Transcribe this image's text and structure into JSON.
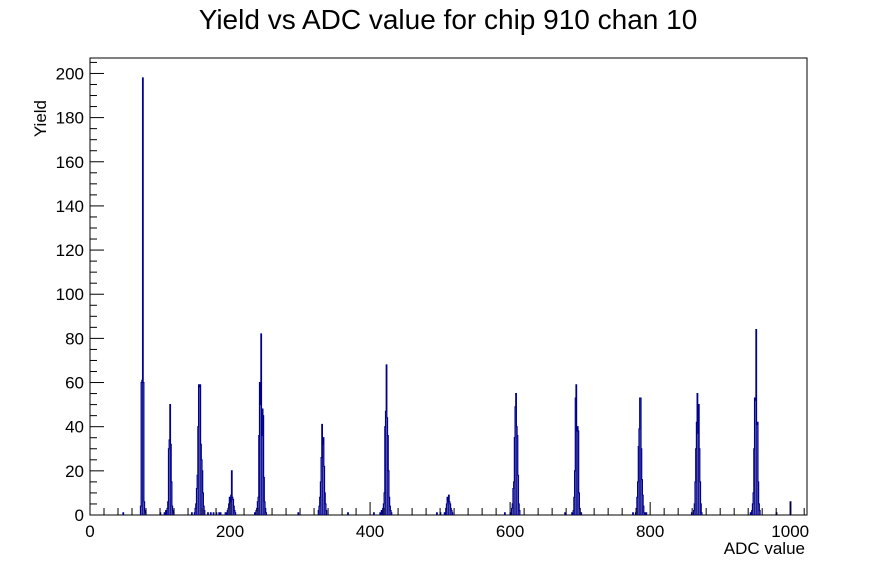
{
  "chart_data": {
    "type": "bar",
    "title": "Yield vs ADC value for chip 910 chan 10",
    "xlabel": "ADC value",
    "ylabel": "Yield",
    "xlim": [
      0,
      1024
    ],
    "ylim": [
      0,
      207
    ],
    "x_ticks": [
      0,
      200,
      400,
      600,
      800,
      1000
    ],
    "y_ticks": [
      0,
      20,
      40,
      60,
      80,
      100,
      120,
      140,
      160,
      180,
      200
    ],
    "grid": false,
    "legend": "none",
    "color": "#00008b",
    "bins": [
      [
        47,
        1
      ],
      [
        72,
        4
      ],
      [
        73,
        60
      ],
      [
        74,
        61
      ],
      [
        75,
        198
      ],
      [
        76,
        60
      ],
      [
        77,
        6
      ],
      [
        78,
        2
      ],
      [
        79,
        1
      ],
      [
        100,
        1
      ],
      [
        106,
        1
      ],
      [
        108,
        2
      ],
      [
        110,
        3
      ],
      [
        111,
        6
      ],
      [
        112,
        30
      ],
      [
        113,
        34
      ],
      [
        114,
        50
      ],
      [
        115,
        32
      ],
      [
        116,
        15
      ],
      [
        117,
        4
      ],
      [
        118,
        2
      ],
      [
        119,
        1
      ],
      [
        145,
        1
      ],
      [
        149,
        1
      ],
      [
        150,
        3
      ],
      [
        151,
        5
      ],
      [
        152,
        12
      ],
      [
        153,
        18
      ],
      [
        154,
        40
      ],
      [
        155,
        59
      ],
      [
        156,
        58
      ],
      [
        157,
        59
      ],
      [
        158,
        32
      ],
      [
        159,
        25
      ],
      [
        160,
        20
      ],
      [
        161,
        10
      ],
      [
        162,
        4
      ],
      [
        163,
        2
      ],
      [
        168,
        1
      ],
      [
        172,
        1
      ],
      [
        176,
        1
      ],
      [
        180,
        1
      ],
      [
        184,
        1
      ],
      [
        186,
        1
      ],
      [
        193,
        1
      ],
      [
        194,
        1
      ],
      [
        196,
        2
      ],
      [
        197,
        3
      ],
      [
        198,
        5
      ],
      [
        199,
        8
      ],
      [
        200,
        6
      ],
      [
        201,
        9
      ],
      [
        202,
        20
      ],
      [
        203,
        8
      ],
      [
        204,
        7
      ],
      [
        205,
        4
      ],
      [
        206,
        2
      ],
      [
        207,
        1
      ],
      [
        235,
        1
      ],
      [
        237,
        2
      ],
      [
        238,
        3
      ],
      [
        239,
        6
      ],
      [
        240,
        8
      ],
      [
        241,
        36
      ],
      [
        242,
        60
      ],
      [
        243,
        50
      ],
      [
        244,
        82
      ],
      [
        245,
        36
      ],
      [
        246,
        48
      ],
      [
        247,
        45
      ],
      [
        248,
        17
      ],
      [
        249,
        6
      ],
      [
        250,
        3
      ],
      [
        251,
        1
      ],
      [
        297,
        1
      ],
      [
        326,
        2
      ],
      [
        327,
        4
      ],
      [
        328,
        8
      ],
      [
        329,
        15
      ],
      [
        330,
        26
      ],
      [
        331,
        41
      ],
      [
        332,
        32
      ],
      [
        333,
        35
      ],
      [
        334,
        22
      ],
      [
        335,
        10
      ],
      [
        336,
        5
      ],
      [
        337,
        2
      ],
      [
        368,
        1
      ],
      [
        405,
        1
      ],
      [
        414,
        1
      ],
      [
        416,
        2
      ],
      [
        418,
        3
      ],
      [
        419,
        5
      ],
      [
        420,
        10
      ],
      [
        421,
        40
      ],
      [
        422,
        47
      ],
      [
        423,
        68
      ],
      [
        424,
        44
      ],
      [
        425,
        36
      ],
      [
        426,
        20
      ],
      [
        427,
        8
      ],
      [
        428,
        4
      ],
      [
        429,
        2
      ],
      [
        430,
        1
      ],
      [
        495,
        1
      ],
      [
        500,
        1
      ],
      [
        506,
        1
      ],
      [
        508,
        3
      ],
      [
        509,
        5
      ],
      [
        510,
        8
      ],
      [
        511,
        6
      ],
      [
        512,
        9
      ],
      [
        513,
        6
      ],
      [
        514,
        5
      ],
      [
        515,
        3
      ],
      [
        516,
        2
      ],
      [
        517,
        1
      ],
      [
        592,
        1
      ],
      [
        600,
        1
      ],
      [
        602,
        3
      ],
      [
        603,
        5
      ],
      [
        604,
        12
      ],
      [
        605,
        15
      ],
      [
        606,
        35
      ],
      [
        607,
        49
      ],
      [
        608,
        55
      ],
      [
        609,
        40
      ],
      [
        610,
        36
      ],
      [
        611,
        18
      ],
      [
        612,
        5
      ],
      [
        613,
        2
      ],
      [
        678,
        1
      ],
      [
        688,
        1
      ],
      [
        690,
        2
      ],
      [
        691,
        8
      ],
      [
        692,
        20
      ],
      [
        693,
        53
      ],
      [
        694,
        59
      ],
      [
        695,
        38
      ],
      [
        696,
        40
      ],
      [
        697,
        38
      ],
      [
        698,
        10
      ],
      [
        699,
        3
      ],
      [
        700,
        1
      ],
      [
        701,
        1
      ],
      [
        775,
        1
      ],
      [
        779,
        1
      ],
      [
        780,
        3
      ],
      [
        781,
        8
      ],
      [
        782,
        15
      ],
      [
        783,
        31
      ],
      [
        784,
        39
      ],
      [
        785,
        53
      ],
      [
        786,
        53
      ],
      [
        787,
        30
      ],
      [
        788,
        16
      ],
      [
        789,
        9
      ],
      [
        790,
        4
      ],
      [
        791,
        1
      ],
      [
        792,
        1
      ],
      [
        794,
        1
      ],
      [
        859,
        1
      ],
      [
        862,
        2
      ],
      [
        863,
        5
      ],
      [
        864,
        15
      ],
      [
        865,
        30
      ],
      [
        866,
        42
      ],
      [
        867,
        55
      ],
      [
        868,
        37
      ],
      [
        869,
        50
      ],
      [
        870,
        30
      ],
      [
        871,
        15
      ],
      [
        872,
        5
      ],
      [
        873,
        1
      ],
      [
        943,
        1
      ],
      [
        945,
        2
      ],
      [
        946,
        5
      ],
      [
        947,
        10
      ],
      [
        948,
        30
      ],
      [
        949,
        53
      ],
      [
        950,
        52
      ],
      [
        951,
        84
      ],
      [
        952,
        41
      ],
      [
        953,
        42
      ],
      [
        954,
        15
      ],
      [
        955,
        5
      ],
      [
        956,
        2
      ],
      [
        980,
        1
      ],
      [
        1000,
        6
      ]
    ]
  }
}
